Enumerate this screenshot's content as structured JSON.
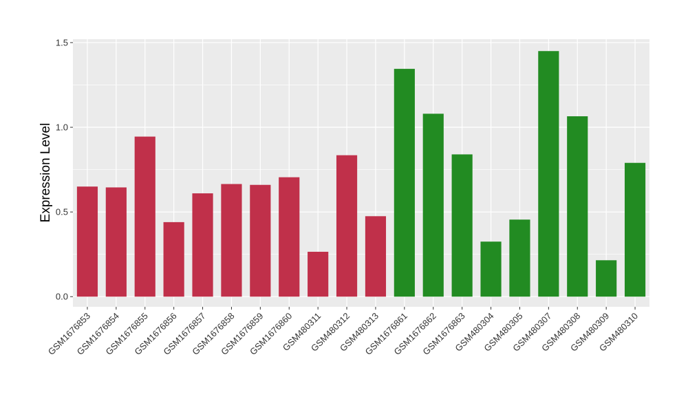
{
  "chart_data": {
    "type": "bar",
    "title": "",
    "xlabel": "",
    "ylabel": "Expression Level",
    "ylim": [
      -0.06,
      1.52
    ],
    "yticks": [
      0.0,
      0.5,
      1.0,
      1.5
    ],
    "ytick_labels": [
      "0.0",
      "0.5",
      "1.0",
      "1.5"
    ],
    "categories": [
      "GSM1676853",
      "GSM1676854",
      "GSM1676855",
      "GSM1676856",
      "GSM1676857",
      "GSM1676858",
      "GSM1676859",
      "GSM1676860",
      "GSM480311",
      "GSM480312",
      "GSM480313",
      "GSM1676861",
      "GSM1676862",
      "GSM1676863",
      "GSM480304",
      "GSM480305",
      "GSM480307",
      "GSM480308",
      "GSM480309",
      "GSM480310"
    ],
    "values": [
      0.65,
      0.645,
      0.945,
      0.44,
      0.61,
      0.665,
      0.66,
      0.705,
      0.265,
      0.835,
      0.475,
      1.345,
      1.08,
      0.84,
      0.325,
      0.455,
      1.45,
      1.065,
      0.215,
      0.79
    ],
    "colors": [
      "#c0304a",
      "#c0304a",
      "#c0304a",
      "#c0304a",
      "#c0304a",
      "#c0304a",
      "#c0304a",
      "#c0304a",
      "#c0304a",
      "#c0304a",
      "#c0304a",
      "#228b22",
      "#228b22",
      "#228b22",
      "#228b22",
      "#228b22",
      "#228b22",
      "#228b22",
      "#228b22",
      "#228b22"
    ],
    "grid": true,
    "panel_background": "#ebebeb",
    "gridline_color": "#ffffff"
  }
}
